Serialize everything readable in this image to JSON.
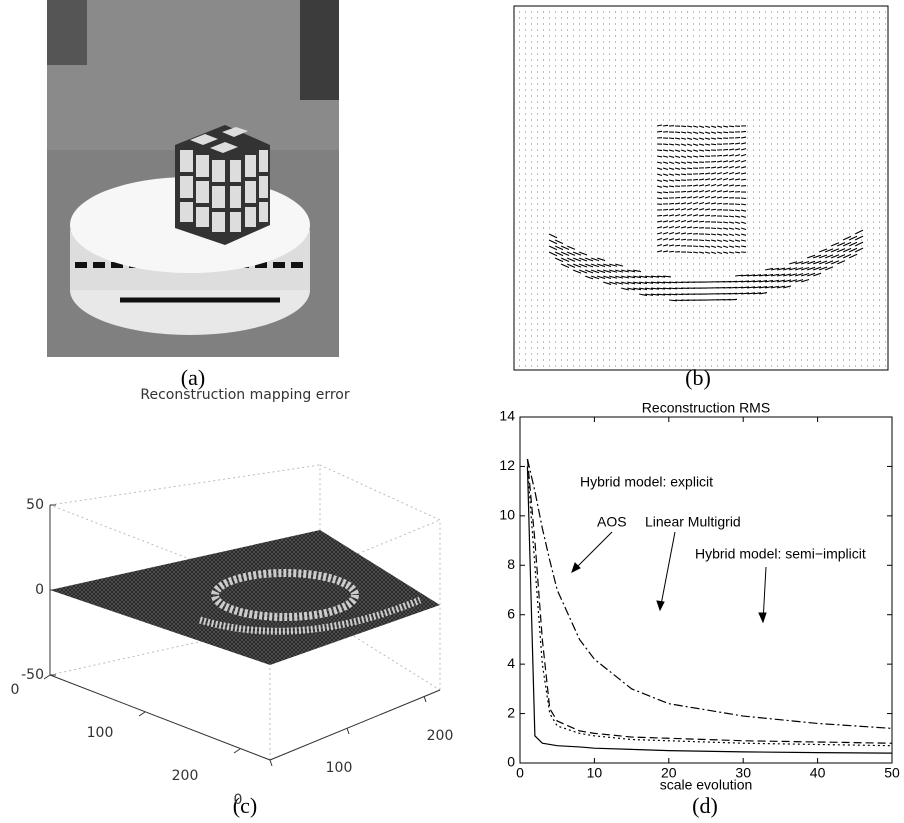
{
  "panels": [
    {
      "caption": "(a)"
    },
    {
      "caption": "(b)"
    },
    {
      "caption": "(c)",
      "title": "Reconstruction mapping error",
      "zticks": [
        -50,
        0,
        50
      ],
      "xticks": [
        0,
        100,
        200
      ],
      "yticks": [
        0,
        100,
        200
      ]
    },
    {
      "caption": "(d)"
    }
  ],
  "chart_data": {
    "type": "line",
    "title": "Reconstruction RMS",
    "xlabel": "scale evolution",
    "xlim": [
      0,
      50
    ],
    "xticks": [
      0,
      10,
      20,
      30,
      40,
      50
    ],
    "ylim": [
      0,
      14
    ],
    "yticks": [
      0,
      2,
      4,
      6,
      8,
      10,
      12,
      14
    ],
    "x": [
      1,
      2,
      3,
      4,
      5,
      8,
      10,
      15,
      20,
      30,
      40,
      50
    ],
    "series": [
      {
        "name": "Hybrid model: explicit",
        "color": "#000000",
        "linestyle": "dashdot",
        "values": [
          12.3,
          11,
          9.5,
          8.2,
          7,
          5,
          4.2,
          3,
          2.4,
          1.9,
          1.6,
          1.4
        ]
      },
      {
        "name": "AOS",
        "color": "#000000",
        "linestyle": "dashed",
        "values": [
          12.3,
          9,
          5,
          2.2,
          1.7,
          1.3,
          1.2,
          1.05,
          1,
          0.9,
          0.85,
          0.8
        ]
      },
      {
        "name": "Linear Multigrid",
        "color": "#000000",
        "linestyle": "dotted",
        "values": [
          12,
          8,
          4,
          2,
          1.5,
          1.2,
          1.1,
          0.95,
          0.9,
          0.8,
          0.75,
          0.7
        ]
      },
      {
        "name": "Hybrid model: semi−implicit",
        "color": "#000000",
        "linestyle": "solid",
        "values": [
          12,
          1.1,
          0.8,
          0.75,
          0.7,
          0.65,
          0.6,
          0.55,
          0.5,
          0.45,
          0.42,
          0.4
        ]
      }
    ]
  }
}
